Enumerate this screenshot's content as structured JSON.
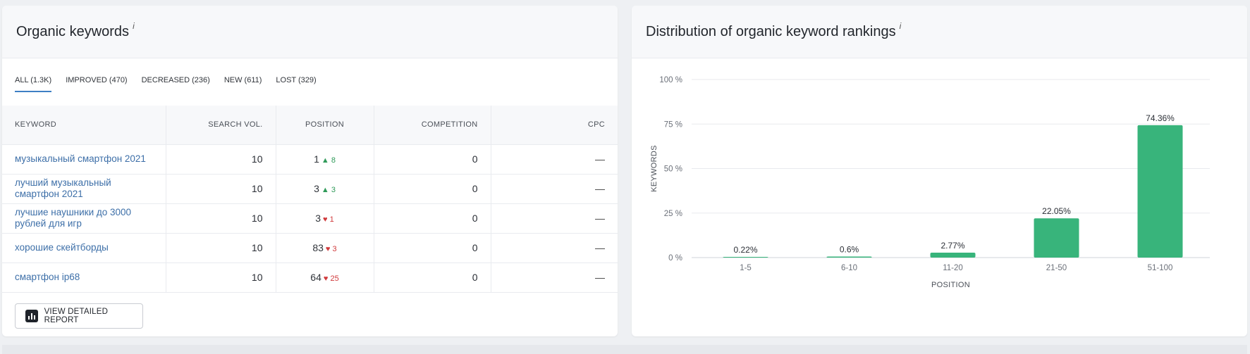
{
  "left_panel": {
    "title": "Organic keywords",
    "info": "i",
    "tabs": [
      {
        "label": "ALL (1.3K)",
        "active": true
      },
      {
        "label": "IMPROVED (470)",
        "active": false
      },
      {
        "label": "DECREASED (236)",
        "active": false
      },
      {
        "label": "NEW (611)",
        "active": false
      },
      {
        "label": "LOST (329)",
        "active": false
      }
    ],
    "columns": {
      "keyword": "KEYWORD",
      "search_vol": "SEARCH VOL.",
      "position": "POSITION",
      "competition": "COMPETITION",
      "cpc": "CPC"
    },
    "rows": [
      {
        "keyword": "музыкальный смартфон 2021",
        "search_vol": "10",
        "position": "1",
        "delta": "8",
        "direction": "up",
        "competition": "0",
        "cpc": "—"
      },
      {
        "keyword": "лучший музыкальный смартфон 2021",
        "search_vol": "10",
        "position": "3",
        "delta": "3",
        "direction": "up",
        "competition": "0",
        "cpc": "—"
      },
      {
        "keyword": "лучшие наушники до 3000 рублей для игр",
        "search_vol": "10",
        "position": "3",
        "delta": "1",
        "direction": "down",
        "competition": "0",
        "cpc": "—"
      },
      {
        "keyword": "хорошие скейтборды",
        "search_vol": "10",
        "position": "83",
        "delta": "3",
        "direction": "down",
        "competition": "0",
        "cpc": "—"
      },
      {
        "keyword": "смартфон ip68",
        "search_vol": "10",
        "position": "64",
        "delta": "25",
        "direction": "down",
        "competition": "0",
        "cpc": "—"
      }
    ],
    "report_button": "VIEW DETAILED REPORT",
    "report_icon": "bar-chart-icon"
  },
  "right_panel": {
    "title": "Distribution of organic keyword rankings",
    "info": "i"
  },
  "colors": {
    "bar": "#38b47b",
    "link": "#3d6fa8",
    "delta_up": "#2f9a59",
    "delta_down": "#d0393b",
    "tab_active": "#3e7fc4"
  },
  "chart_data": {
    "type": "bar",
    "title": "Distribution of organic keyword rankings",
    "xlabel": "POSITION",
    "ylabel": "KEYWORDS",
    "categories": [
      "1-5",
      "6-10",
      "11-20",
      "21-50",
      "51-100"
    ],
    "values": [
      0.22,
      0.6,
      2.77,
      22.05,
      74.36
    ],
    "value_labels": [
      "0.22%",
      "0.6%",
      "2.77%",
      "22.05%",
      "74.36%"
    ],
    "yticks": [
      0,
      25,
      50,
      75,
      100
    ],
    "ytick_labels": [
      "0 %",
      "25 %",
      "50 %",
      "75 %",
      "100 %"
    ],
    "ylim": [
      0,
      100
    ],
    "grid": true,
    "legend": "none"
  }
}
